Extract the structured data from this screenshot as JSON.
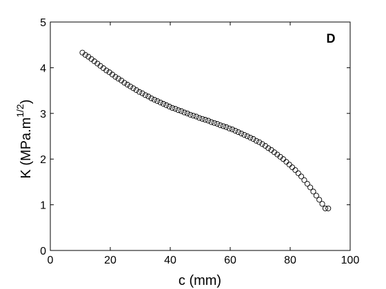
{
  "chart_data": {
    "type": "scatter",
    "panel_label": "D",
    "xlabel": "c (mm)",
    "ylabel_main": "K (MPa.m",
    "ylabel_sup": "1/2",
    "ylabel_close": ")",
    "xlim": [
      0,
      100
    ],
    "ylim": [
      0,
      5
    ],
    "xticks": [
      0,
      20,
      40,
      60,
      80,
      100
    ],
    "yticks": [
      0,
      1,
      2,
      3,
      4,
      5
    ],
    "grid": false,
    "marker": "open-circle",
    "x": [
      10.7,
      11.7,
      12.7,
      13.7,
      14.7,
      15.7,
      16.7,
      17.7,
      18.7,
      19.7,
      20.7,
      21.7,
      22.7,
      23.7,
      24.7,
      25.7,
      26.7,
      27.7,
      28.7,
      29.7,
      30.7,
      31.7,
      32.7,
      33.7,
      34.7,
      35.7,
      36.7,
      37.7,
      38.7,
      39.7,
      40.7,
      41.7,
      42.7,
      43.7,
      44.7,
      45.7,
      46.7,
      47.7,
      48.7,
      49.7,
      50.7,
      51.7,
      52.7,
      53.7,
      54.7,
      55.7,
      56.7,
      57.7,
      58.7,
      59.7,
      60.7,
      61.7,
      62.7,
      63.7,
      64.7,
      65.7,
      66.7,
      67.7,
      68.7,
      69.7,
      70.7,
      71.7,
      72.7,
      73.7,
      74.7,
      75.7,
      76.7,
      77.7,
      78.7,
      79.7,
      80.7,
      81.7,
      82.7,
      83.7,
      84.7,
      85.7,
      86.7,
      87.7,
      88.7,
      89.7,
      90.7,
      91.7,
      92.7
    ],
    "y": [
      4.33,
      4.28,
      4.24,
      4.19,
      4.14,
      4.09,
      4.04,
      3.99,
      3.94,
      3.9,
      3.85,
      3.8,
      3.76,
      3.72,
      3.67,
      3.63,
      3.59,
      3.55,
      3.51,
      3.47,
      3.44,
      3.4,
      3.37,
      3.33,
      3.3,
      3.27,
      3.24,
      3.21,
      3.18,
      3.15,
      3.12,
      3.1,
      3.07,
      3.05,
      3.02,
      3.0,
      2.97,
      2.95,
      2.93,
      2.9,
      2.88,
      2.86,
      2.84,
      2.81,
      2.79,
      2.77,
      2.74,
      2.72,
      2.7,
      2.67,
      2.65,
      2.62,
      2.59,
      2.56,
      2.53,
      2.5,
      2.47,
      2.44,
      2.4,
      2.37,
      2.33,
      2.29,
      2.24,
      2.2,
      2.15,
      2.1,
      2.05,
      2.0,
      1.94,
      1.88,
      1.82,
      1.76,
      1.69,
      1.62,
      1.54,
      1.46,
      1.38,
      1.29,
      1.2,
      1.11,
      1.02,
      0.92,
      0.92
    ]
  }
}
